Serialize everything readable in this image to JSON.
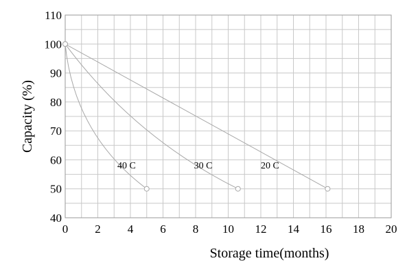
{
  "chart_data": {
    "type": "line",
    "title": "",
    "xlabel": "Storage time(months)",
    "ylabel": "Capacity (%)",
    "xlim": [
      0,
      20
    ],
    "ylim": [
      40,
      110
    ],
    "xticks": [
      0,
      2,
      4,
      6,
      8,
      10,
      12,
      14,
      16,
      18,
      20
    ],
    "yticks": [
      40,
      50,
      60,
      70,
      80,
      90,
      100,
      110
    ],
    "grid": true,
    "series": [
      {
        "name": "40 C",
        "x": [
          0,
          5
        ],
        "y": [
          100,
          50
        ],
        "curve": "concave",
        "label_at": [
          3.2,
          57
        ]
      },
      {
        "name": "30 C",
        "x": [
          0,
          10.6
        ],
        "y": [
          100,
          50
        ],
        "curve": "slight-concave",
        "label_at": [
          7.9,
          57
        ]
      },
      {
        "name": "20 C",
        "x": [
          0,
          16.1
        ],
        "y": [
          100,
          50
        ],
        "curve": "linear",
        "label_at": [
          12.0,
          57
        ]
      }
    ]
  }
}
